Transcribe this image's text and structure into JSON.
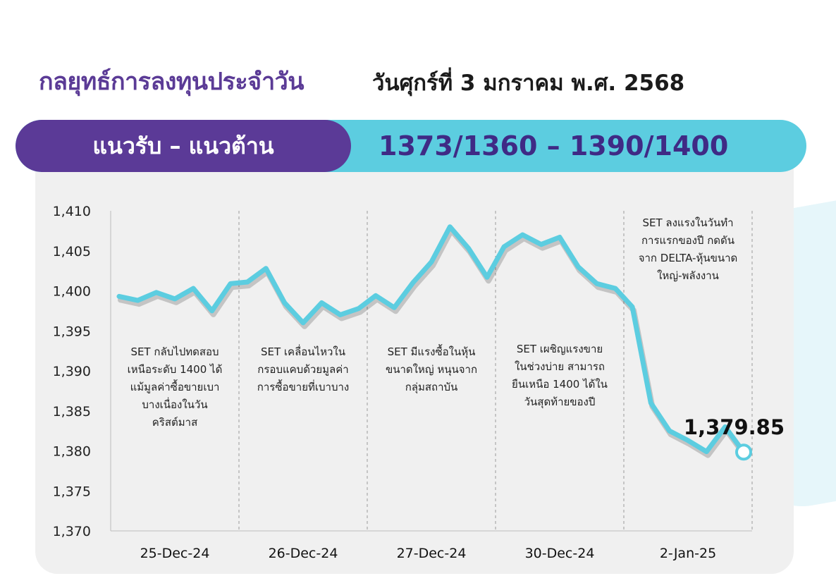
{
  "header": {
    "title": "กลยุทธ์การลงทุนประจำวัน",
    "date": "วันศุกร์ที่ 3 มกราคม พ.ศ. 2568"
  },
  "banner": {
    "label": "แนวรับ – แนวต้าน",
    "levels": "1373/1360 – 1390/1400"
  },
  "colors": {
    "purple": "#5b3a97",
    "cyan": "#5ccde0",
    "line": "#5ccde0"
  },
  "chart_data": {
    "type": "line",
    "ylim": [
      1370,
      1410
    ],
    "yticks": [
      "1,370",
      "1,375",
      "1,380",
      "1,385",
      "1,390",
      "1,395",
      "1,400",
      "1,405",
      "1,410"
    ],
    "categories": [
      "25-Dec-24",
      "26-Dec-24",
      "27-Dec-24",
      "30-Dec-24",
      "2-Jan-25"
    ],
    "series": [
      {
        "values": [
          [
            1399.3,
            1398.8,
            1399.8,
            1399.0,
            1400.3,
            1397.5,
            1400.9
          ],
          [
            1401.1,
            1402.8,
            1398.5,
            1396.0,
            1398.5,
            1397.0,
            1397.8
          ],
          [
            1399.4,
            1397.9,
            1401.0,
            1403.6,
            1408.0,
            1405.3,
            1401.7
          ],
          [
            1405.5,
            1407.0,
            1405.8,
            1406.7,
            1403.0,
            1400.9,
            1400.3
          ],
          [
            1398.0,
            1386.0,
            1382.5,
            1381.3,
            1379.9,
            1383.0,
            1379.85
          ]
        ]
      }
    ],
    "annotations": [
      "SET กลับไปทดสอบเหนือระดับ 1400 ได้แม้มูลค่าซื้อขายเบาบางเนื่องในวันคริสต์มาส",
      "SET เคลื่อนไหวในกรอบแคบด้วยมูลค่าการซื้อขายที่เบาบาง",
      "SET มีแรงซื้อในหุ้นขนาดใหญ่ หนุนจากกลุ่มสถาบัน",
      "SET เผชิญแรงขายในช่วงบ่าย สามารถยืนเหนือ 1400 ได้ในวันสุดท้ายของปี",
      "SET ลงแรงในวันทำการแรกของปี กดดันจาก DELTA-หุ้นขนาดใหญ่-พลังงาน"
    ],
    "last_value_label": "1,379.85"
  }
}
